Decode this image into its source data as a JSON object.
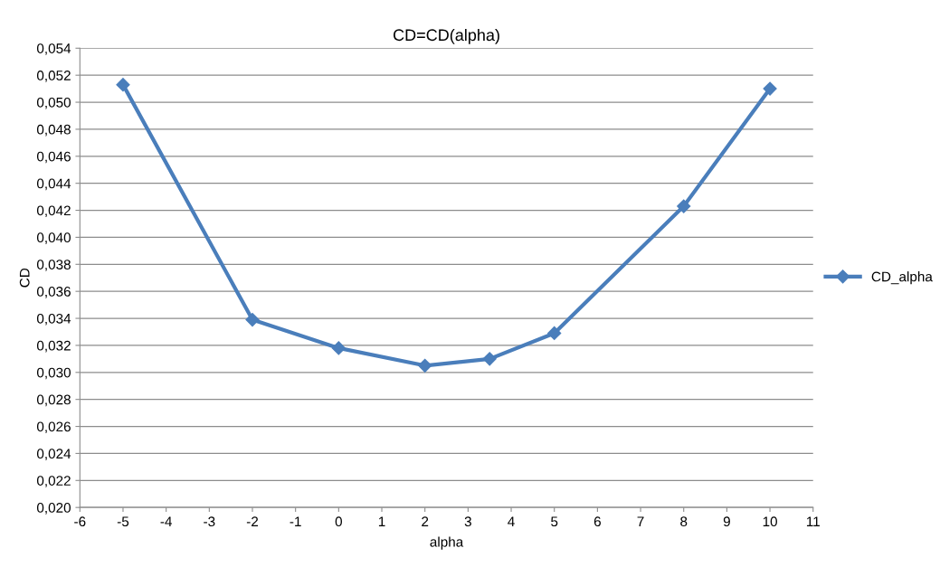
{
  "chart_data": {
    "type": "line",
    "title": "CD=CD(alpha)",
    "xlabel": "alpha",
    "ylabel": "CD",
    "x": [
      -5,
      -2,
      0,
      2,
      3.5,
      5,
      8,
      10
    ],
    "series": [
      {
        "name": "CD_alpha",
        "color": "#4a7ebb",
        "values": [
          0.0513,
          0.0339,
          0.0318,
          0.0305,
          0.031,
          0.0329,
          0.0423,
          0.051
        ]
      }
    ],
    "xlim": [
      -6,
      11
    ],
    "xticks": [
      -6,
      -5,
      -4,
      -3,
      -2,
      -1,
      0,
      1,
      2,
      3,
      4,
      5,
      6,
      7,
      8,
      9,
      10,
      11
    ],
    "ylim": [
      0.02,
      0.054
    ],
    "yticks": [
      {
        "value": 0.02,
        "label": "0,020"
      },
      {
        "value": 0.022,
        "label": "0,022"
      },
      {
        "value": 0.024,
        "label": "0,024"
      },
      {
        "value": 0.026,
        "label": "0,026"
      },
      {
        "value": 0.028,
        "label": "0,028"
      },
      {
        "value": 0.03,
        "label": "0,030"
      },
      {
        "value": 0.032,
        "label": "0,032"
      },
      {
        "value": 0.034,
        "label": "0,034"
      },
      {
        "value": 0.036,
        "label": "0,036"
      },
      {
        "value": 0.038,
        "label": "0,038"
      },
      {
        "value": 0.04,
        "label": "0,040"
      },
      {
        "value": 0.042,
        "label": "0,042"
      },
      {
        "value": 0.044,
        "label": "0,044"
      },
      {
        "value": 0.046,
        "label": "0,046"
      },
      {
        "value": 0.048,
        "label": "0,048"
      },
      {
        "value": 0.05,
        "label": "0,050"
      },
      {
        "value": 0.052,
        "label": "0,052"
      },
      {
        "value": 0.054,
        "label": "0,054"
      }
    ],
    "grid": "y",
    "legend": "right",
    "marker": "diamond",
    "line_style": "solid"
  }
}
